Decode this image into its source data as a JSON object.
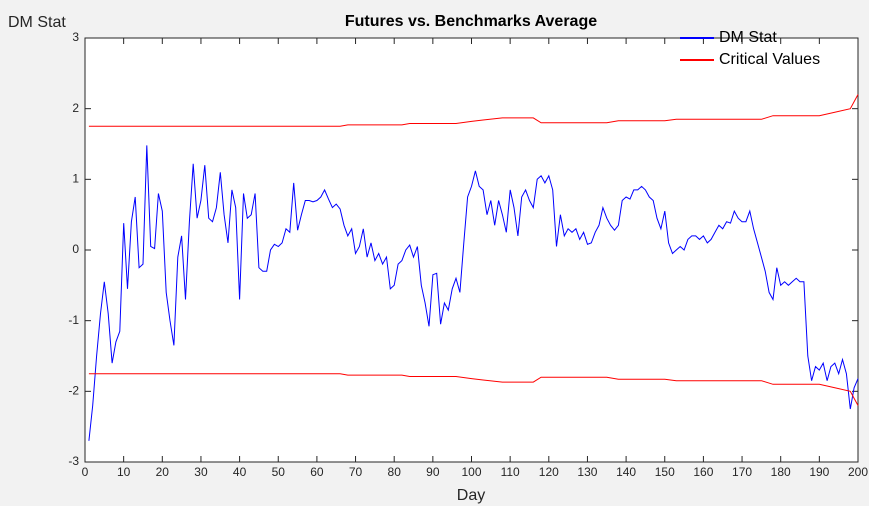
{
  "chart_data": {
    "type": "line",
    "title": "Futures vs. Benchmarks Average",
    "xlabel": "Day",
    "ylabel": "DM Stat",
    "xlim": [
      0,
      200
    ],
    "ylim": [
      -3,
      3
    ],
    "xticks": [
      0,
      10,
      20,
      30,
      40,
      50,
      60,
      70,
      80,
      90,
      100,
      110,
      120,
      130,
      140,
      150,
      160,
      170,
      180,
      190,
      200
    ],
    "yticks": [
      -3,
      -2,
      -1,
      0,
      1,
      2,
      3
    ],
    "legend": "top-right",
    "series": [
      {
        "name": "DM Stat",
        "color": "#0000ff",
        "x": [
          1,
          2,
          3,
          4,
          5,
          6,
          7,
          8,
          9,
          10,
          11,
          12,
          13,
          14,
          15,
          16,
          17,
          18,
          19,
          20,
          21,
          22,
          23,
          24,
          25,
          26,
          27,
          28,
          29,
          30,
          31,
          32,
          33,
          34,
          35,
          36,
          37,
          38,
          39,
          40,
          41,
          42,
          43,
          44,
          45,
          46,
          47,
          48,
          49,
          50,
          51,
          52,
          53,
          54,
          55,
          56,
          57,
          58,
          59,
          60,
          61,
          62,
          63,
          64,
          65,
          66,
          67,
          68,
          69,
          70,
          71,
          72,
          73,
          74,
          75,
          76,
          77,
          78,
          79,
          80,
          81,
          82,
          83,
          84,
          85,
          86,
          87,
          88,
          89,
          90,
          91,
          92,
          93,
          94,
          95,
          96,
          97,
          98,
          99,
          100,
          101,
          102,
          103,
          104,
          105,
          106,
          107,
          108,
          109,
          110,
          111,
          112,
          113,
          114,
          115,
          116,
          117,
          118,
          119,
          120,
          121,
          122,
          123,
          124,
          125,
          126,
          127,
          128,
          129,
          130,
          131,
          132,
          133,
          134,
          135,
          136,
          137,
          138,
          139,
          140,
          141,
          142,
          143,
          144,
          145,
          146,
          147,
          148,
          149,
          150,
          151,
          152,
          153,
          154,
          155,
          156,
          157,
          158,
          159,
          160,
          161,
          162,
          163,
          164,
          165,
          166,
          167,
          168,
          169,
          170,
          171,
          172,
          173,
          174,
          175,
          176,
          177,
          178,
          179,
          180,
          181,
          182,
          183,
          184,
          185,
          186,
          187,
          188,
          189,
          190,
          191,
          192,
          193,
          194,
          195,
          196,
          197,
          198,
          199,
          200
        ],
        "values": [
          -2.7,
          -2.2,
          -1.5,
          -0.9,
          -0.45,
          -0.9,
          -1.6,
          -1.3,
          -1.15,
          0.38,
          -0.55,
          0.4,
          0.75,
          -0.25,
          -0.2,
          1.48,
          0.05,
          0.02,
          0.8,
          0.55,
          -0.6,
          -1.0,
          -1.35,
          -0.1,
          0.2,
          -0.7,
          0.4,
          1.22,
          0.45,
          0.7,
          1.2,
          0.45,
          0.4,
          0.6,
          1.1,
          0.5,
          0.1,
          0.85,
          0.6,
          -0.7,
          0.8,
          0.45,
          0.5,
          0.8,
          -0.25,
          -0.3,
          -0.3,
          0.0,
          0.08,
          0.05,
          0.1,
          0.3,
          0.25,
          0.95,
          0.28,
          0.5,
          0.7,
          0.7,
          0.68,
          0.7,
          0.75,
          0.85,
          0.72,
          0.6,
          0.65,
          0.58,
          0.35,
          0.2,
          0.3,
          -0.05,
          0.05,
          0.3,
          -0.1,
          0.1,
          -0.15,
          -0.05,
          -0.2,
          -0.1,
          -0.55,
          -0.5,
          -0.2,
          -0.15,
          0.0,
          0.07,
          -0.1,
          0.05,
          -0.5,
          -0.75,
          -1.08,
          -0.35,
          -0.33,
          -1.05,
          -0.75,
          -0.85,
          -0.55,
          -0.4,
          -0.6,
          0.1,
          0.75,
          0.9,
          1.12,
          0.9,
          0.85,
          0.5,
          0.7,
          0.35,
          0.7,
          0.5,
          0.25,
          0.85,
          0.6,
          0.2,
          0.75,
          0.85,
          0.7,
          0.6,
          1.0,
          1.05,
          0.95,
          1.05,
          0.85,
          0.05,
          0.5,
          0.2,
          0.3,
          0.25,
          0.3,
          0.15,
          0.25,
          0.08,
          0.1,
          0.25,
          0.35,
          0.6,
          0.45,
          0.35,
          0.28,
          0.35,
          0.7,
          0.75,
          0.72,
          0.85,
          0.85,
          0.9,
          0.85,
          0.75,
          0.7,
          0.45,
          0.3,
          0.55,
          0.1,
          -0.05,
          0.0,
          0.05,
          0.0,
          0.15,
          0.2,
          0.2,
          0.15,
          0.2,
          0.1,
          0.15,
          0.25,
          0.35,
          0.3,
          0.4,
          0.38,
          0.55,
          0.45,
          0.4,
          0.4,
          0.55,
          0.3,
          0.1,
          -0.1,
          -0.3,
          -0.6,
          -0.7,
          -0.25,
          -0.5,
          -0.45,
          -0.5,
          -0.45,
          -0.4,
          -0.45,
          -0.45,
          -1.5,
          -1.85,
          -1.65,
          -1.7,
          -1.6,
          -1.85,
          -1.65,
          -1.6,
          -1.75,
          -1.55,
          -1.75,
          -2.25,
          -1.95,
          -1.82
        ]
      },
      {
        "name": "Critical Values",
        "color": "#ff0000",
        "x": [
          1,
          66,
          68,
          82,
          84,
          96,
          100,
          103,
          108,
          116,
          118,
          135,
          138,
          150,
          153,
          175,
          178,
          190,
          194,
          198,
          200
        ],
        "values": [
          1.75,
          1.75,
          1.77,
          1.77,
          1.79,
          1.79,
          1.82,
          1.84,
          1.87,
          1.87,
          1.8,
          1.8,
          1.83,
          1.83,
          1.85,
          1.85,
          1.9,
          1.9,
          1.95,
          2.0,
          2.2
        ],
        "lower": [
          -1.75,
          -1.75,
          -1.77,
          -1.77,
          -1.79,
          -1.79,
          -1.82,
          -1.84,
          -1.87,
          -1.87,
          -1.8,
          -1.8,
          -1.83,
          -1.83,
          -1.85,
          -1.85,
          -1.9,
          -1.9,
          -1.95,
          -2.0,
          -2.2
        ]
      }
    ]
  }
}
